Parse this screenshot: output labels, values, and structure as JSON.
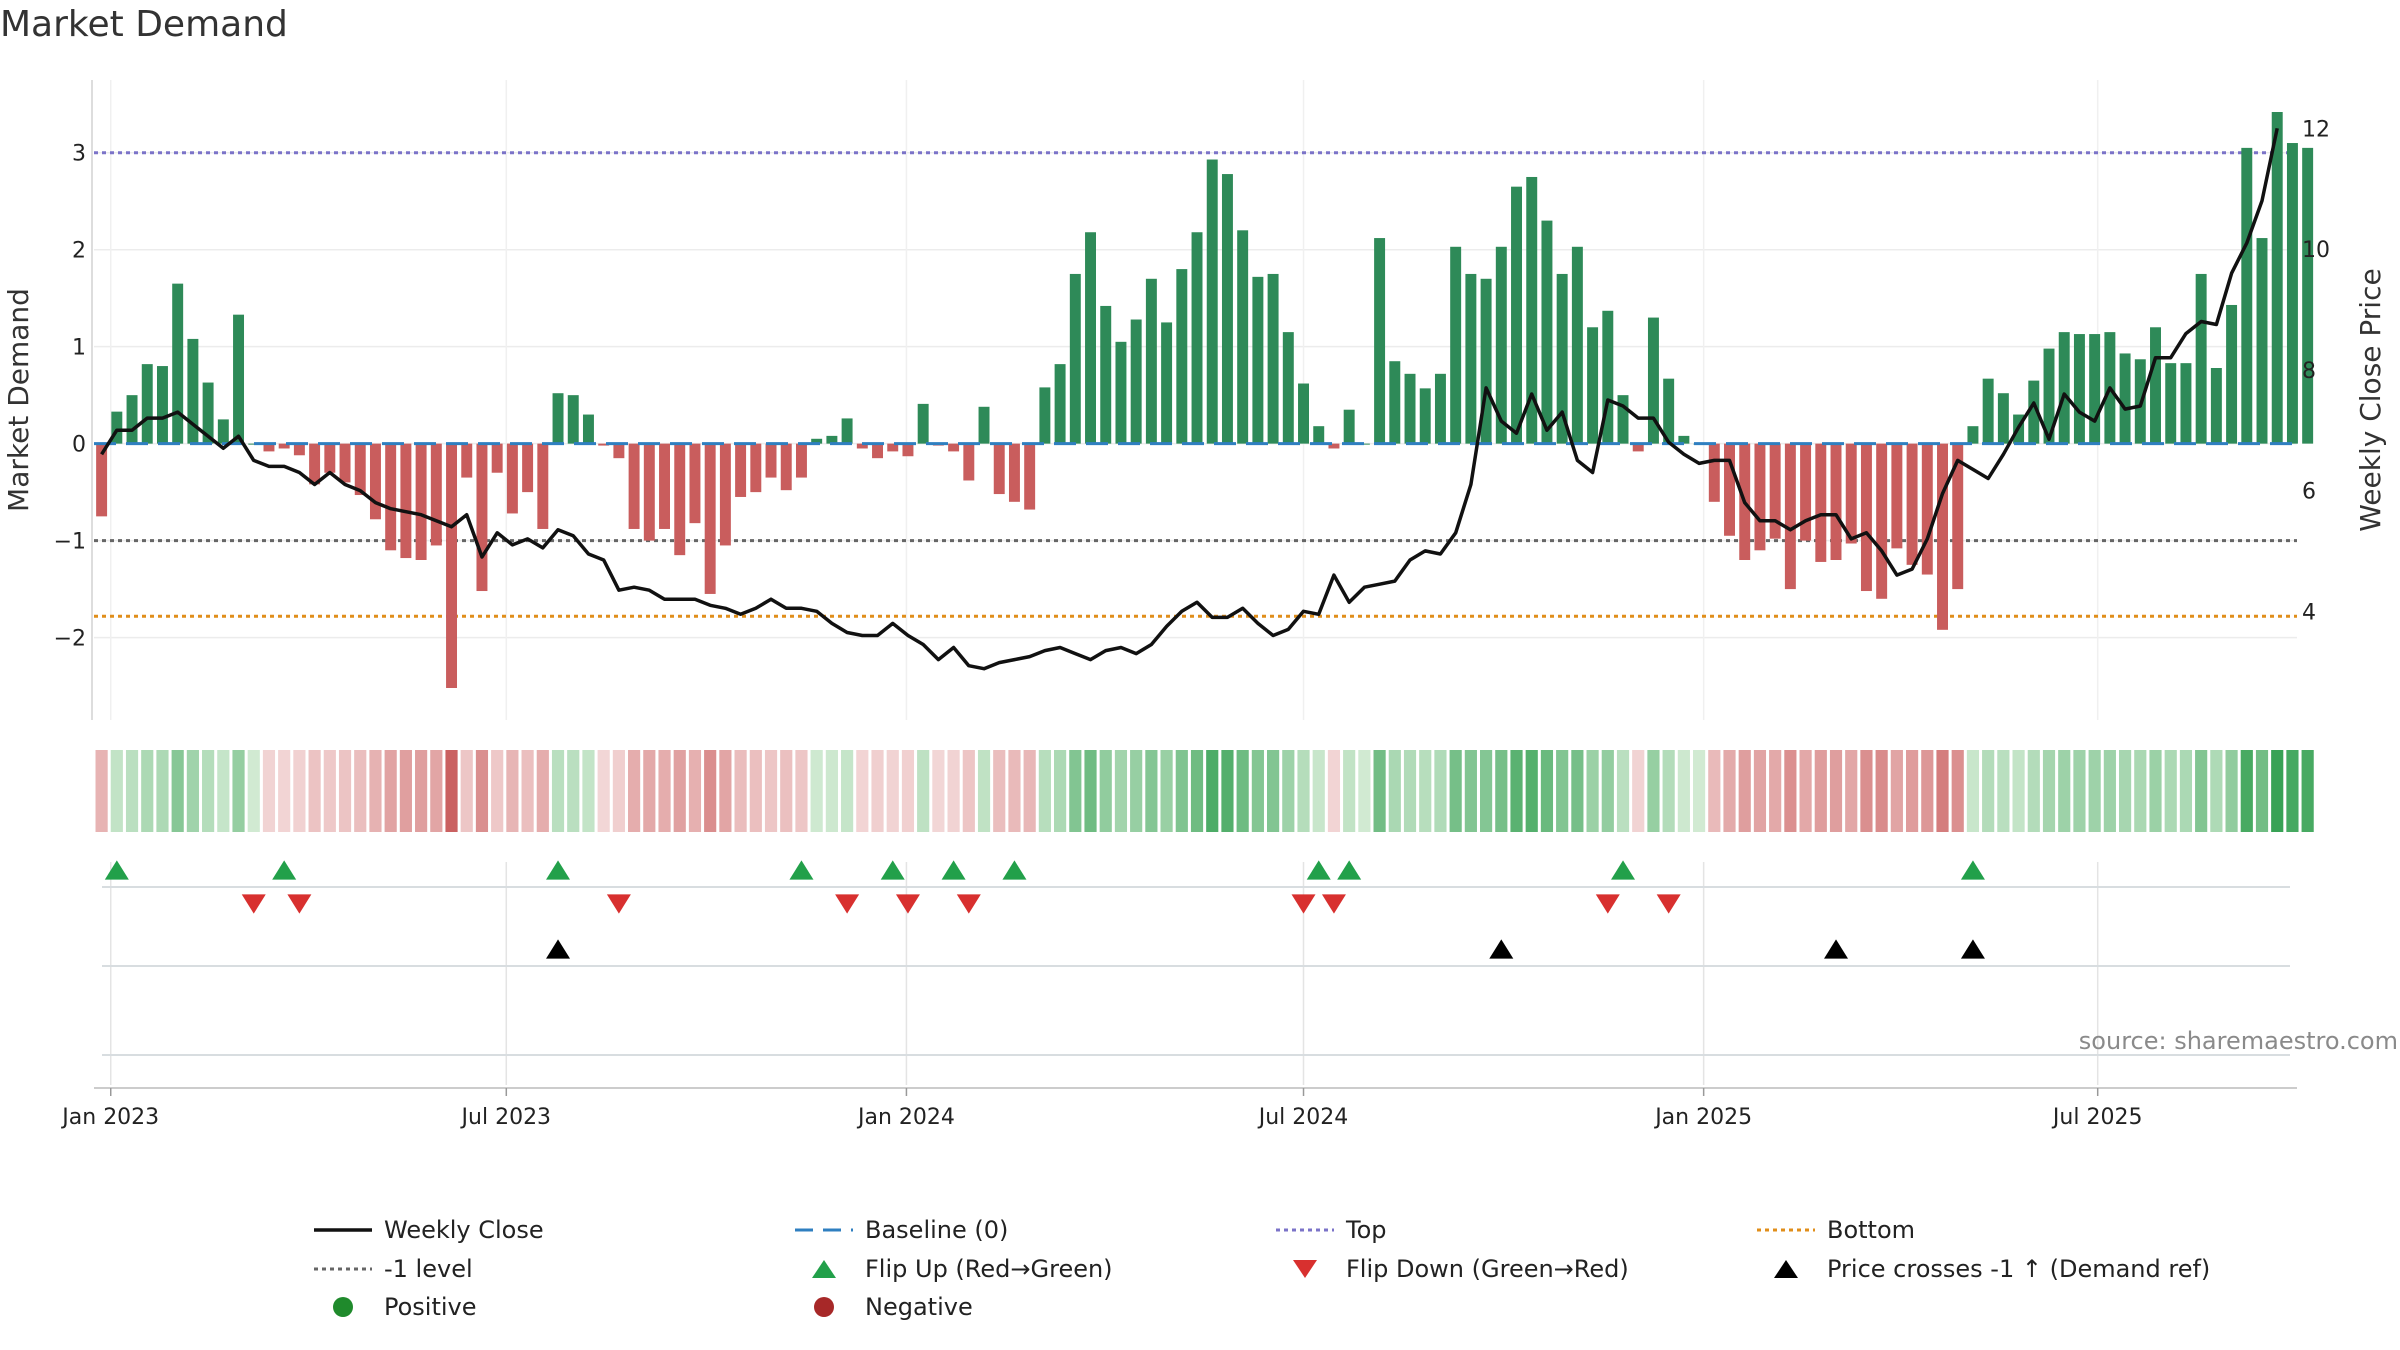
{
  "chart_data": {
    "type": "bar",
    "title": "Market Demand",
    "ylabel": "Market Demand",
    "y2label": "Weekly Close Price",
    "ylim": [
      -2.85,
      3.75
    ],
    "y2lim": [
      2.2,
      12.8
    ],
    "y_ticks": [
      -2,
      -1,
      0,
      1,
      2,
      3
    ],
    "y_tick_labels": [
      "−2",
      "−1",
      "0",
      "1",
      "2",
      "3"
    ],
    "y2_ticks": [
      4,
      6,
      8,
      10,
      12
    ],
    "y2_tick_labels": [
      "4",
      "6",
      "8",
      "10",
      "12"
    ],
    "x_ticks": [
      0.6,
      26.6,
      52.9,
      79.0,
      105.3,
      131.2
    ],
    "x_tick_labels": [
      "Jan 2023",
      "Jul 2023",
      "Jan 2024",
      "Jul 2024",
      "Jan 2025",
      "Jul 2025"
    ],
    "x_range": [
      -0.5,
      144.3
    ],
    "top_level": 3.0,
    "bottom_level": -1.78,
    "minus1_level": -1.0,
    "baseline": 0,
    "demand": [
      -0.75,
      0.33,
      0.5,
      0.82,
      0.8,
      1.65,
      1.08,
      0.63,
      0.25,
      1.33,
      0.0,
      -0.08,
      -0.05,
      -0.12,
      -0.42,
      -0.3,
      -0.4,
      -0.53,
      -0.78,
      -1.1,
      -1.18,
      -1.2,
      -1.05,
      -2.52,
      -0.35,
      -1.52,
      -0.3,
      -0.72,
      -0.5,
      -0.88,
      0.52,
      0.5,
      0.3,
      -0.02,
      -0.15,
      -0.88,
      -1.0,
      -0.88,
      -1.15,
      -0.82,
      -1.55,
      -1.05,
      -0.55,
      -0.5,
      -0.35,
      -0.48,
      -0.35,
      0.05,
      0.08,
      0.26,
      -0.05,
      -0.15,
      -0.08,
      -0.13,
      0.41,
      -0.02,
      -0.08,
      -0.38,
      0.38,
      -0.52,
      -0.6,
      -0.68,
      0.58,
      0.82,
      1.75,
      2.18,
      1.42,
      1.05,
      1.28,
      1.7,
      1.25,
      1.8,
      2.18,
      2.93,
      2.78,
      2.2,
      1.72,
      1.75,
      1.15,
      0.62,
      0.18,
      -0.05,
      0.35,
      0.0,
      2.12,
      0.85,
      0.72,
      0.57,
      0.72,
      2.03,
      1.75,
      1.7,
      2.03,
      2.65,
      2.75,
      2.3,
      1.75,
      2.03,
      1.2,
      1.37,
      0.5,
      -0.08,
      1.3,
      0.67,
      0.08,
      0.0,
      -0.6,
      -0.95,
      -1.2,
      -1.1,
      -0.98,
      -1.5,
      -1.0,
      -1.22,
      -1.2,
      -1.03,
      -1.52,
      -1.6,
      -1.08,
      -1.25,
      -1.35,
      -1.92,
      -1.5,
      0.18,
      0.67,
      0.52,
      0.3,
      0.65,
      0.98,
      1.15,
      1.13,
      1.13,
      1.15,
      0.93,
      0.87,
      1.2,
      0.83,
      0.83,
      1.75,
      0.78,
      1.43,
      3.05,
      2.12,
      3.42,
      3.1,
      3.05
    ],
    "close": [
      6.6,
      7.0,
      7.0,
      7.2,
      7.2,
      7.3,
      7.1,
      6.9,
      6.7,
      6.9,
      6.5,
      6.4,
      6.4,
      6.3,
      6.1,
      6.3,
      6.1,
      6.0,
      5.8,
      5.7,
      5.65,
      5.6,
      5.5,
      5.4,
      5.6,
      4.9,
      5.3,
      5.1,
      5.2,
      5.05,
      5.35,
      5.25,
      4.95,
      4.85,
      4.35,
      4.4,
      4.35,
      4.2,
      4.2,
      4.2,
      4.1,
      4.05,
      3.95,
      4.05,
      4.2,
      4.05,
      4.05,
      4.0,
      3.8,
      3.65,
      3.6,
      3.6,
      3.8,
      3.6,
      3.45,
      3.2,
      3.4,
      3.1,
      3.05,
      3.15,
      3.2,
      3.25,
      3.35,
      3.4,
      3.3,
      3.2,
      3.35,
      3.4,
      3.3,
      3.45,
      3.75,
      4.0,
      4.15,
      3.9,
      3.9,
      4.05,
      3.8,
      3.6,
      3.7,
      4.0,
      3.95,
      4.6,
      4.15,
      4.4,
      4.45,
      4.5,
      4.85,
      5.0,
      4.95,
      5.3,
      6.1,
      7.7,
      7.15,
      6.95,
      7.6,
      7.0,
      7.3,
      6.5,
      6.3,
      7.5,
      7.4,
      7.2,
      7.2,
      6.8,
      6.6,
      6.45,
      6.5,
      6.5,
      5.8,
      5.5,
      5.5,
      5.35,
      5.5,
      5.6,
      5.6,
      5.2,
      5.3,
      5.0,
      4.6,
      4.7,
      5.2,
      5.95,
      6.5,
      6.35,
      6.2,
      6.6,
      7.05,
      7.45,
      6.85,
      7.6,
      7.3,
      7.15,
      7.7,
      7.35,
      7.4,
      8.2,
      8.2,
      8.6,
      8.8,
      8.75,
      9.6,
      10.1,
      10.8,
      12.0
    ],
    "flip_up": [
      1,
      12,
      30,
      46,
      52,
      56,
      60,
      80,
      82,
      100,
      123
    ],
    "flip_down": [
      10,
      13,
      34,
      49,
      53,
      57,
      79,
      81,
      99,
      103
    ],
    "price_cross_up": [
      30,
      92,
      114,
      123
    ],
    "source_text": "source: sharemaestro.com",
    "legend": [
      {
        "label": "Weekly Close",
        "marker": "line-black"
      },
      {
        "label": "Baseline (0)",
        "marker": "dash-blue"
      },
      {
        "label": "Top",
        "marker": "dot-purple"
      },
      {
        "label": "Bottom",
        "marker": "dot-orange"
      },
      {
        "label": "-1 level",
        "marker": "dot-gray"
      },
      {
        "label": "Flip Up (Red→Green)",
        "marker": "tri-up-green"
      },
      {
        "label": "Flip Down (Green→Red)",
        "marker": "tri-down-red"
      },
      {
        "label": "Price crosses -1 ↑ (Demand ref)",
        "marker": "tri-up-black"
      },
      {
        "label": "Positive",
        "marker": "circle-green"
      },
      {
        "label": "Negative",
        "marker": "circle-red"
      }
    ],
    "colors": {
      "positive": "#2e8a58",
      "negative": "#c95d5d",
      "close": "#111111",
      "baseline": "#2f7fc0",
      "top": "#7b73c8",
      "bottom": "#e08e1a",
      "minus1": "#666666",
      "flip_up": "#22a04a",
      "flip_down": "#d8302f",
      "cross": "#000000",
      "legend_positive": "#1f8a2c",
      "legend_negative": "#a72828"
    }
  }
}
